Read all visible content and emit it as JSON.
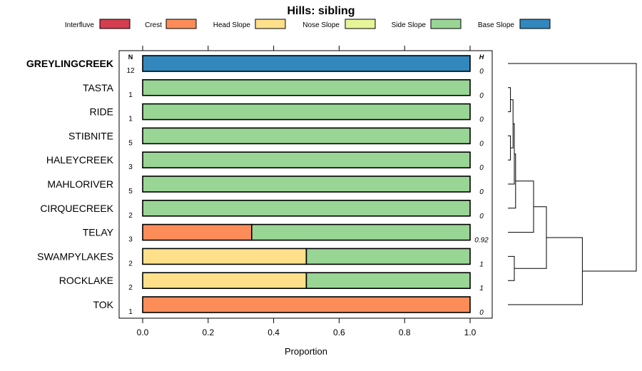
{
  "chart_data": {
    "type": "bar",
    "orientation": "horizontal",
    "stacked": true,
    "title": "Hills: sibling",
    "xlabel": "Proportion",
    "xlim": [
      -0.07,
      1.07
    ],
    "xticks": [
      0.0,
      0.2,
      0.4,
      0.6,
      0.8,
      1.0
    ],
    "xtick_labels": [
      "0.0",
      "0.2",
      "0.4",
      "0.6",
      "0.8",
      "1.0"
    ],
    "n_header": "N",
    "h_header": "H",
    "legend": [
      {
        "name": "Interfluve",
        "color": "#D53E4F"
      },
      {
        "name": "Crest",
        "color": "#FC8D59"
      },
      {
        "name": "Head Slope",
        "color": "#FEE08B"
      },
      {
        "name": "Nose Slope",
        "color": "#E6F598"
      },
      {
        "name": "Side Slope",
        "color": "#99D594"
      },
      {
        "name": "Base Slope",
        "color": "#3288BD"
      }
    ],
    "categories": [
      "GREYLINGCREEK",
      "TASTA",
      "RIDE",
      "STIBNITE",
      "HALEYCREEK",
      "MAHLORIVER",
      "CIRQUECREEK",
      "TELAY",
      "SWAMPYLAKES",
      "ROCKLAKE",
      "TOK"
    ],
    "bold_category": "GREYLINGCREEK",
    "n_values": [
      "12",
      "1",
      "1",
      "5",
      "3",
      "5",
      "2",
      "3",
      "2",
      "2",
      "1"
    ],
    "h_values": [
      "0",
      "0",
      "0",
      "0",
      "0",
      "0",
      "0",
      "0.92",
      "1",
      "1",
      "0"
    ],
    "series": [
      {
        "name": "Interfluve",
        "values": [
          0,
          0,
          0,
          0,
          0,
          0,
          0,
          0,
          0,
          0,
          0
        ]
      },
      {
        "name": "Crest",
        "values": [
          0,
          0,
          0,
          0,
          0,
          0,
          0,
          0.333,
          0,
          0,
          1
        ]
      },
      {
        "name": "Head Slope",
        "values": [
          0,
          0,
          0,
          0,
          0,
          0,
          0,
          0,
          0.5,
          0.5,
          0
        ]
      },
      {
        "name": "Nose Slope",
        "values": [
          0,
          0,
          0,
          0,
          0,
          0,
          0,
          0,
          0,
          0,
          0
        ]
      },
      {
        "name": "Side Slope",
        "values": [
          0,
          1,
          1,
          1,
          1,
          1,
          1,
          0.667,
          0.5,
          0.5,
          0
        ]
      },
      {
        "name": "Base Slope",
        "values": [
          1,
          0,
          0,
          0,
          0,
          0,
          0,
          0,
          0,
          0,
          0
        ]
      }
    ],
    "dendrogram": {
      "leaves": [
        "GREYLINGCREEK",
        "TASTA",
        "RIDE",
        "STIBNITE",
        "HALEYCREEK",
        "MAHLORIVER",
        "CIRQUECREEK",
        "TELAY",
        "SWAMPYLAKES",
        "ROCKLAKE",
        "TOK"
      ],
      "merges": [
        {
          "a": "TASTA",
          "b": "RIDE",
          "height": 0.02
        },
        {
          "a": "STIBNITE",
          "b": "HALEYCREEK",
          "height": 0.02
        },
        {
          "a": "m0",
          "b": "m1",
          "height": 0.04
        },
        {
          "a": "m2",
          "b": "MAHLORIVER",
          "height": 0.05
        },
        {
          "a": "m3",
          "b": "CIRQUECREEK",
          "height": 0.06
        },
        {
          "a": "SWAMPYLAKES",
          "b": "ROCKLAKE",
          "height": 0.05
        },
        {
          "a": "m4",
          "b": "TELAY",
          "height": 0.2
        },
        {
          "a": "m6",
          "b": "m5",
          "height": 0.3
        },
        {
          "a": "m7",
          "b": "TOK",
          "height": 0.58
        },
        {
          "a": "GREYLINGCREEK",
          "b": "m8",
          "height": 1.0
        }
      ]
    }
  }
}
